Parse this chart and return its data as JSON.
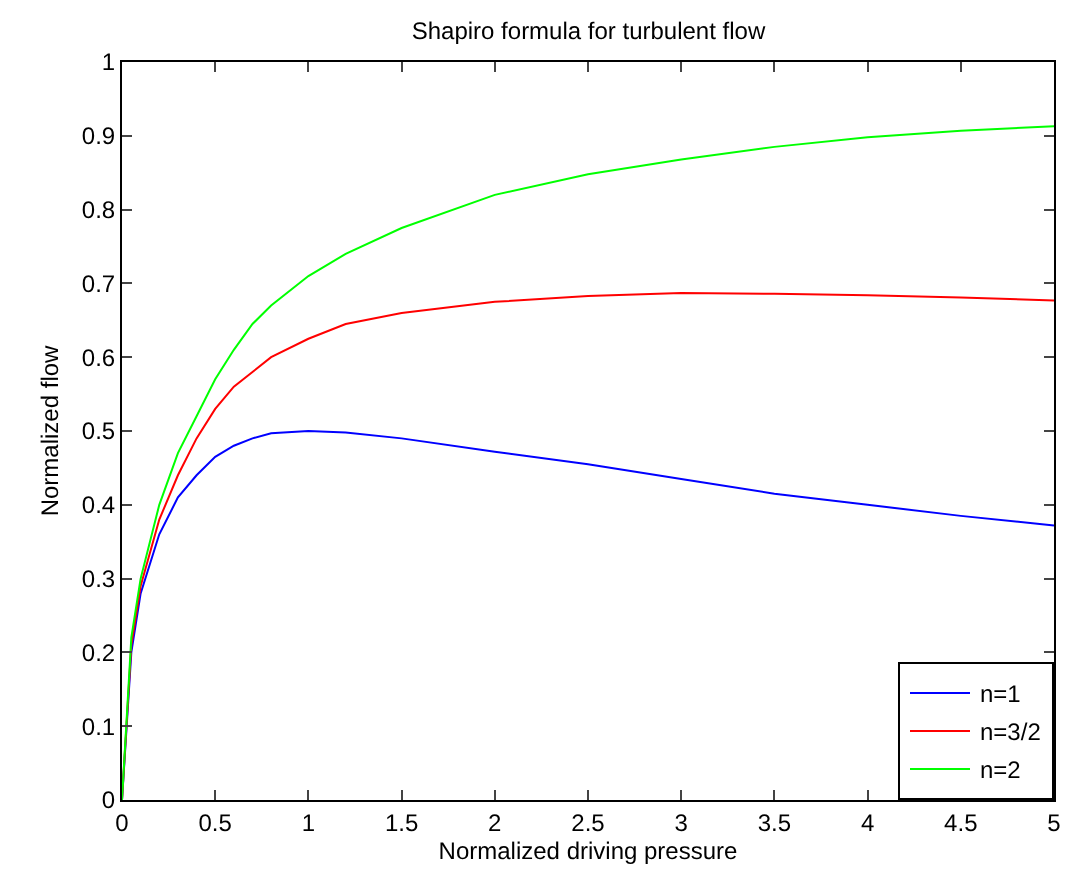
{
  "chart_data": {
    "type": "line",
    "title": "Shapiro formula for turbulent flow",
    "xlabel": "Normalized driving pressure",
    "ylabel": "Normalized flow",
    "x": [
      0,
      0.05,
      0.1,
      0.2,
      0.3,
      0.4,
      0.5,
      0.6,
      0.7,
      0.8,
      1,
      1.2,
      1.5,
      2,
      2.5,
      3,
      3.5,
      4,
      4.5,
      5
    ],
    "series": [
      {
        "name": "n=1",
        "color": "#0000ff",
        "values": [
          0,
          0.2,
          0.28,
          0.36,
          0.41,
          0.44,
          0.465,
          0.48,
          0.49,
          0.497,
          0.5,
          0.498,
          0.49,
          0.472,
          0.455,
          0.435,
          0.415,
          0.4,
          0.385,
          0.372
        ]
      },
      {
        "name": "n=3/2",
        "color": "#ff0000",
        "values": [
          0,
          0.21,
          0.29,
          0.38,
          0.44,
          0.49,
          0.53,
          0.56,
          0.58,
          0.6,
          0.625,
          0.645,
          0.66,
          0.675,
          0.683,
          0.687,
          0.686,
          0.684,
          0.681,
          0.677
        ]
      },
      {
        "name": "n=2",
        "color": "#00ff00",
        "values": [
          0,
          0.22,
          0.3,
          0.4,
          0.47,
          0.52,
          0.57,
          0.61,
          0.645,
          0.67,
          0.71,
          0.74,
          0.775,
          0.82,
          0.848,
          0.868,
          0.885,
          0.898,
          0.907,
          0.913
        ]
      }
    ],
    "xlim": [
      0,
      5
    ],
    "xticks": [
      0,
      0.5,
      1,
      1.5,
      2,
      2.5,
      3,
      3.5,
      4,
      4.5,
      5
    ],
    "ylim": [
      0,
      1
    ],
    "yticks": [
      0,
      0.1,
      0.2,
      0.3,
      0.4,
      0.5,
      0.6,
      0.7,
      0.8,
      0.9,
      1
    ],
    "grid": false,
    "legend": "bottom right",
    "marker": "none",
    "line_style": "solid"
  }
}
